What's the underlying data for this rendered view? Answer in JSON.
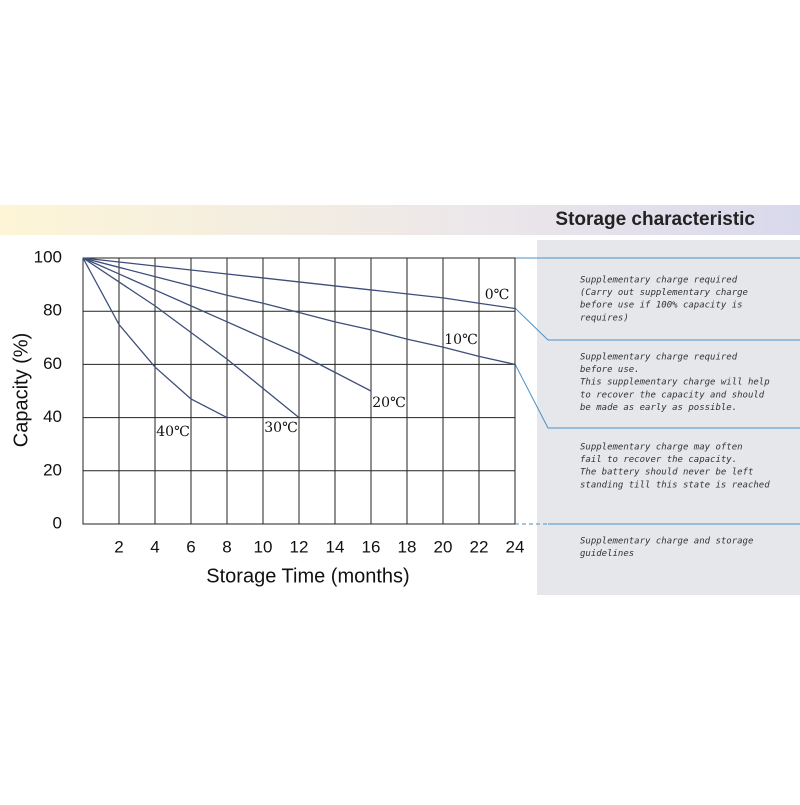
{
  "chart_data": {
    "type": "line",
    "title": "Storage characteristic",
    "xlabel": "Storage Time (months)",
    "ylabel": "Capacity  (%)",
    "x": [
      0,
      2,
      4,
      6,
      8,
      10,
      12,
      14,
      16,
      18,
      20,
      22,
      24
    ],
    "xlim": [
      0,
      24
    ],
    "xticks": [
      2,
      4,
      6,
      8,
      10,
      12,
      14,
      16,
      18,
      20,
      22,
      24
    ],
    "ylim": [
      0,
      100
    ],
    "yticks": [
      0,
      20,
      40,
      60,
      80,
      100
    ],
    "grid": true,
    "series": [
      {
        "name": "0℃",
        "color": "#3d4e7a",
        "values": [
          100,
          98.5,
          97,
          95.5,
          94,
          92.5,
          91,
          89.5,
          88,
          86.5,
          85,
          83,
          81
        ]
      },
      {
        "name": "10℃",
        "color": "#3d4e7a",
        "values": [
          100,
          96.5,
          93,
          89.5,
          86,
          83,
          79.5,
          76,
          73,
          69.5,
          66.5,
          63,
          60
        ]
      },
      {
        "name": "20℃",
        "color": "#3d4e7a",
        "values": [
          100,
          94,
          88,
          82,
          76,
          70,
          64,
          57,
          50,
          null,
          null,
          null,
          null
        ]
      },
      {
        "name": "30℃",
        "color": "#3d4e7a",
        "values": [
          100,
          91,
          82,
          72,
          62,
          51,
          40,
          null,
          null,
          null,
          null,
          null,
          null
        ]
      },
      {
        "name": "40℃",
        "color": "#3d4e7a",
        "values": [
          100,
          75,
          59,
          47,
          40,
          null,
          null,
          null,
          null,
          null,
          null,
          null,
          null
        ]
      }
    ],
    "notes": [
      [
        "Supplementary charge required",
        "(Carry out supplementary charge",
        "before use if 100% capacity is",
        "requires)"
      ],
      [
        "Supplementary charge required",
        "before use.",
        "This supplementary charge will help",
        "to recover the capacity and should",
        "be made  as early as possible."
      ],
      [
        "Supplementary charge may often",
        "fail to recover the capacity.",
        "The battery should never be left",
        "standing till this state is reached"
      ],
      [
        "Supplementary charge and storage",
        "guidelines"
      ]
    ]
  }
}
